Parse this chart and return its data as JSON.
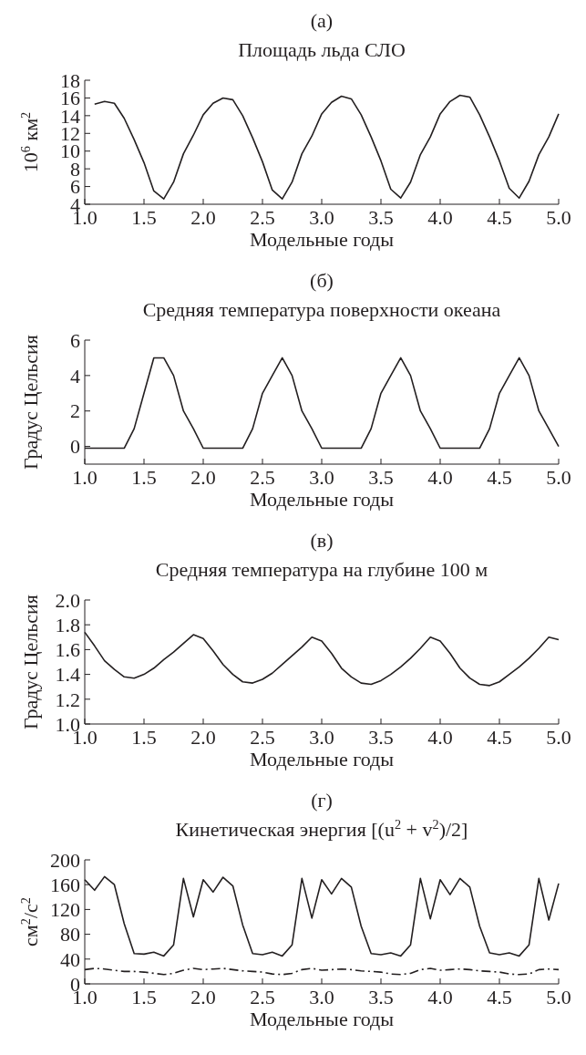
{
  "chart_data": [
    {
      "type": "line",
      "title": "(a)",
      "subtitle": "Площадь льда СЛО",
      "xlabel": "Модельные годы",
      "ylabel": "10$^{6}$ км$^{2}$",
      "xlim": [
        1,
        5
      ],
      "xticks": [
        {
          "value": 1,
          "label": "1.0"
        },
        {
          "value": 1.5,
          "label": "1.5"
        },
        {
          "value": 2,
          "label": "2.0"
        },
        {
          "value": 2.5,
          "label": "2.5"
        },
        {
          "value": 3,
          "label": "3.0"
        },
        {
          "value": 3.5,
          "label": "3.5"
        },
        {
          "value": 4,
          "label": "4.0"
        },
        {
          "value": 4.5,
          "label": "4.5"
        },
        {
          "value": 5,
          "label": "5.0"
        }
      ],
      "ylim": [
        4,
        18
      ],
      "yticks": [
        4,
        6,
        8,
        10,
        12,
        14,
        16,
        18
      ],
      "grid": false,
      "x": [
        1.083,
        1.167,
        1.25,
        1.333,
        1.417,
        1.5,
        1.583,
        1.667,
        1.75,
        1.833,
        1.917,
        2.0,
        2.083,
        2.167,
        2.25,
        2.333,
        2.417,
        2.5,
        2.583,
        2.667,
        2.75,
        2.833,
        2.917,
        3.0,
        3.083,
        3.167,
        3.25,
        3.333,
        3.417,
        3.5,
        3.583,
        3.667,
        3.75,
        3.833,
        3.917,
        4.0,
        4.083,
        4.167,
        4.25,
        4.333,
        4.417,
        4.5,
        4.583,
        4.667,
        4.75,
        4.833,
        4.917,
        5.0
      ],
      "series": [
        {
          "color": "#231f20",
          "line_style": "solid",
          "values": [
            15.3,
            15.6,
            15.4,
            13.7,
            11.3,
            8.7,
            5.5,
            4.6,
            6.5,
            9.7,
            11.8,
            14.1,
            15.4,
            16.0,
            15.8,
            14.0,
            11.5,
            8.8,
            5.6,
            4.6,
            6.5,
            9.7,
            11.7,
            14.2,
            15.5,
            16.2,
            15.9,
            14.1,
            11.6,
            8.9,
            5.7,
            4.7,
            6.5,
            9.6,
            11.6,
            14.2,
            15.6,
            16.3,
            16.1,
            14.1,
            11.6,
            8.9,
            5.8,
            4.7,
            6.6,
            9.6,
            11.6,
            14.2
          ]
        }
      ]
    },
    {
      "type": "line",
      "title": "(б)",
      "subtitle": "Средняя температура поверхности океана",
      "xlabel": "Модельные годы",
      "ylabel": "Градус Цельсия",
      "xlim": [
        1,
        5
      ],
      "xticks": [
        {
          "value": 1,
          "label": "1.0"
        },
        {
          "value": 1.5,
          "label": "1.5"
        },
        {
          "value": 2,
          "label": "2.0"
        },
        {
          "value": 2.5,
          "label": "2.5"
        },
        {
          "value": 3,
          "label": "3.0"
        },
        {
          "value": 3.5,
          "label": "3.5"
        },
        {
          "value": 4,
          "label": "4.0"
        },
        {
          "value": 4.5,
          "label": "4.5"
        },
        {
          "value": 5,
          "label": "5.0"
        }
      ],
      "ylim": [
        -1,
        6
      ],
      "yticks": [
        0,
        2,
        4,
        6
      ],
      "grid": false,
      "x": [
        1.0,
        1.083,
        1.167,
        1.25,
        1.333,
        1.417,
        1.5,
        1.583,
        1.667,
        1.75,
        1.833,
        1.917,
        2.0,
        2.083,
        2.167,
        2.25,
        2.333,
        2.417,
        2.5,
        2.583,
        2.667,
        2.75,
        2.833,
        2.917,
        3.0,
        3.083,
        3.167,
        3.25,
        3.333,
        3.417,
        3.5,
        3.583,
        3.667,
        3.75,
        3.833,
        3.917,
        4.0,
        4.083,
        4.167,
        4.25,
        4.333,
        4.417,
        4.5,
        4.583,
        4.667,
        4.75,
        4.833,
        4.917,
        5.0
      ],
      "series": [
        {
          "color": "#231f20",
          "line_style": "solid",
          "values": [
            -0.1,
            -0.1,
            -0.1,
            -0.1,
            -0.1,
            1,
            3,
            5,
            5,
            4,
            2,
            1,
            -0.1,
            -0.1,
            -0.1,
            -0.1,
            -0.1,
            1,
            3,
            4,
            5,
            4,
            2,
            1,
            -0.1,
            -0.1,
            -0.1,
            -0.1,
            -0.1,
            1,
            3,
            4,
            5,
            4,
            2,
            1,
            -0.1,
            -0.1,
            -0.1,
            -0.1,
            -0.1,
            1,
            3,
            4,
            5,
            4,
            2,
            1,
            0
          ]
        }
      ]
    },
    {
      "type": "line",
      "title": "(в)",
      "subtitle": "Средняя температура на глубине 100 м",
      "xlabel": "Модельные годы",
      "ylabel": "Градус Цельсия",
      "xlim": [
        1,
        5
      ],
      "xticks": [
        {
          "value": 1,
          "label": "1.0"
        },
        {
          "value": 1.5,
          "label": "1.5"
        },
        {
          "value": 2,
          "label": "2.0"
        },
        {
          "value": 2.5,
          "label": "2.5"
        },
        {
          "value": 3,
          "label": "3.0"
        },
        {
          "value": 3.5,
          "label": "3.5"
        },
        {
          "value": 4,
          "label": "4.0"
        },
        {
          "value": 4.5,
          "label": "4.5"
        },
        {
          "value": 5,
          "label": "5.0"
        }
      ],
      "ylim": [
        1,
        2
      ],
      "yticks": [
        {
          "value": 1,
          "label": "1.0"
        },
        {
          "value": 1.2,
          "label": "1.2"
        },
        {
          "value": 1.4,
          "label": "1.4"
        },
        {
          "value": 1.6,
          "label": "1.6"
        },
        {
          "value": 1.8,
          "label": "1.8"
        },
        {
          "value": 2,
          "label": "2.0"
        }
      ],
      "grid": false,
      "x": [
        1.0,
        1.083,
        1.167,
        1.25,
        1.333,
        1.417,
        1.5,
        1.583,
        1.667,
        1.75,
        1.833,
        1.917,
        2.0,
        2.083,
        2.167,
        2.25,
        2.333,
        2.417,
        2.5,
        2.583,
        2.667,
        2.75,
        2.833,
        2.917,
        3.0,
        3.083,
        3.167,
        3.25,
        3.333,
        3.417,
        3.5,
        3.583,
        3.667,
        3.75,
        3.833,
        3.917,
        4.0,
        4.083,
        4.167,
        4.25,
        4.333,
        4.417,
        4.5,
        4.583,
        4.667,
        4.75,
        4.833,
        4.917,
        5.0
      ],
      "series": [
        {
          "color": "#231f20",
          "line_style": "solid",
          "values": [
            1.74,
            1.63,
            1.51,
            1.44,
            1.38,
            1.37,
            1.4,
            1.45,
            1.52,
            1.58,
            1.65,
            1.72,
            1.69,
            1.59,
            1.48,
            1.4,
            1.34,
            1.33,
            1.36,
            1.41,
            1.48,
            1.55,
            1.62,
            1.7,
            1.67,
            1.57,
            1.45,
            1.38,
            1.33,
            1.32,
            1.35,
            1.4,
            1.46,
            1.53,
            1.61,
            1.7,
            1.67,
            1.57,
            1.45,
            1.37,
            1.32,
            1.31,
            1.34,
            1.4,
            1.46,
            1.53,
            1.61,
            1.7,
            1.68
          ]
        }
      ]
    },
    {
      "type": "line",
      "title": "(г)",
      "subtitle": "Кинетическая энергия [(u$^{2}$ + v$^{2}$)/2]",
      "xlabel": "Модельные годы",
      "ylabel": "см$^{2}$/с$^{2}$",
      "xlim": [
        1,
        5
      ],
      "xticks": [
        {
          "value": 1,
          "label": "1.0"
        },
        {
          "value": 1.5,
          "label": "1.5"
        },
        {
          "value": 2,
          "label": "2.0"
        },
        {
          "value": 2.5,
          "label": "2.5"
        },
        {
          "value": 3,
          "label": "3.0"
        },
        {
          "value": 3.5,
          "label": "3.5"
        },
        {
          "value": 4,
          "label": "4.0"
        },
        {
          "value": 4.5,
          "label": "4.5"
        },
        {
          "value": 5,
          "label": "5.0"
        }
      ],
      "ylim": [
        0,
        200
      ],
      "yticks": [
        0,
        40,
        80,
        120,
        160,
        200
      ],
      "grid": false,
      "x": [
        1.0,
        1.083,
        1.167,
        1.25,
        1.333,
        1.417,
        1.5,
        1.583,
        1.667,
        1.75,
        1.833,
        1.917,
        2.0,
        2.083,
        2.167,
        2.25,
        2.333,
        2.417,
        2.5,
        2.583,
        2.667,
        2.75,
        2.833,
        2.917,
        3.0,
        3.083,
        3.167,
        3.25,
        3.333,
        3.417,
        3.5,
        3.583,
        3.667,
        3.75,
        3.833,
        3.917,
        4.0,
        4.083,
        4.167,
        4.25,
        4.333,
        4.417,
        4.5,
        4.583,
        4.667,
        4.75,
        4.833,
        4.917,
        5.0
      ],
      "series": [
        {
          "color": "#231f20",
          "line_style": "solid",
          "values": [
            168,
            151,
            173,
            160,
            97,
            49,
            48,
            51,
            45,
            63,
            170,
            108,
            168,
            148,
            172,
            158,
            95,
            49,
            47,
            51,
            45,
            63,
            170,
            106,
            168,
            145,
            170,
            156,
            93,
            49,
            47,
            50,
            45,
            63,
            170,
            105,
            168,
            144,
            170,
            156,
            93,
            50,
            47,
            50,
            45,
            63,
            170,
            103,
            162
          ]
        },
        {
          "color": "#231f20",
          "line_style": "dashed",
          "values": [
            23,
            25,
            24,
            22,
            20,
            20,
            19,
            17,
            15,
            17,
            22,
            25,
            23,
            24,
            25,
            23,
            21,
            20,
            19,
            16,
            15,
            17,
            23,
            25,
            22,
            23,
            24,
            23,
            21,
            20,
            19,
            16,
            15,
            17,
            23,
            25,
            22,
            23,
            24,
            23,
            21,
            20,
            19,
            16,
            15,
            16,
            23,
            24,
            23
          ]
        }
      ]
    }
  ]
}
